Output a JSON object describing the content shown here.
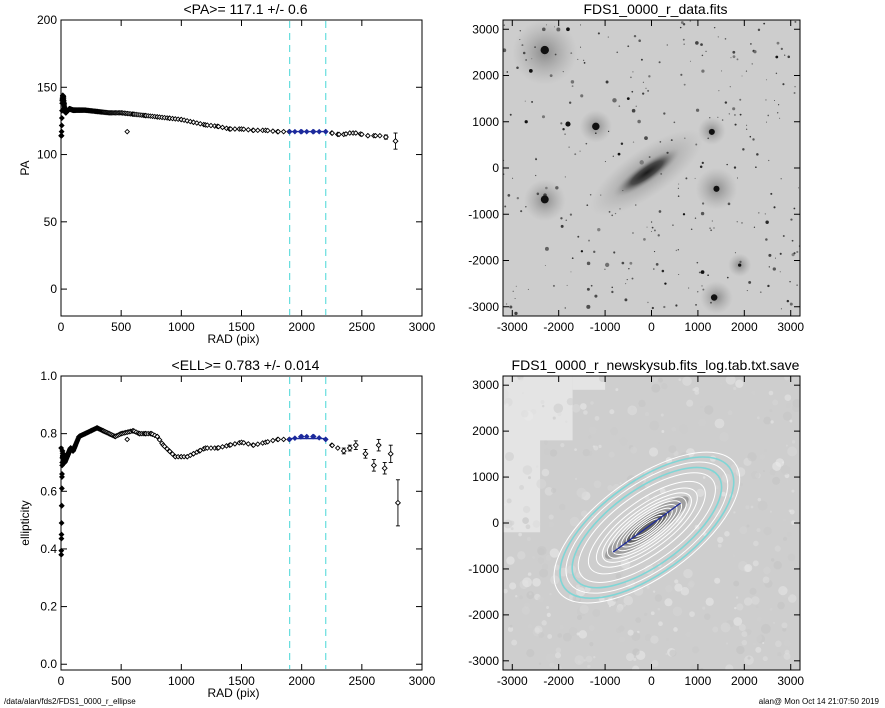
{
  "footer": {
    "path": "/data/alan/fds2/FDS1_0000_r_ellipse",
    "user_time": "alan@  Mon Oct 14 21:07:50 2019"
  },
  "chart_data": [
    {
      "type": "scatter",
      "title": "<PA>= 117.1 +/-   0.6",
      "xlabel": "RAD (pix)",
      "ylabel": "PA",
      "xlim": [
        0,
        3000
      ],
      "ylim": [
        -20,
        200
      ],
      "xticks": [
        0,
        500,
        1000,
        1500,
        2000,
        2500,
        3000
      ],
      "yticks": [
        0,
        50,
        100,
        150,
        200
      ],
      "grid": false,
      "vlines": [
        1900,
        2200
      ],
      "vline_color": "#66dddd",
      "point_color": "#000000",
      "highlight_color": "#1c2a9c",
      "fit": {
        "x0": 1900,
        "x1": 2200,
        "value": 117.1
      },
      "outliers": [
        {
          "x": 550,
          "y": 117
        }
      ],
      "profile": [
        [
          5,
          117
        ],
        [
          10,
          140
        ],
        [
          15,
          144
        ],
        [
          20,
          143
        ],
        [
          25,
          138
        ],
        [
          30,
          134
        ],
        [
          40,
          131
        ],
        [
          50,
          132
        ],
        [
          70,
          134
        ],
        [
          100,
          133
        ],
        [
          150,
          133
        ],
        [
          200,
          133
        ],
        [
          300,
          132
        ],
        [
          400,
          131
        ],
        [
          500,
          131
        ],
        [
          600,
          130
        ],
        [
          700,
          129
        ],
        [
          800,
          128
        ],
        [
          900,
          127
        ],
        [
          1000,
          126
        ],
        [
          1100,
          124
        ],
        [
          1200,
          122
        ],
        [
          1300,
          121
        ],
        [
          1400,
          119
        ],
        [
          1500,
          119
        ],
        [
          1600,
          118
        ],
        [
          1700,
          118
        ],
        [
          1800,
          117
        ],
        [
          1900,
          117
        ],
        [
          2000,
          117
        ],
        [
          2100,
          117
        ],
        [
          2200,
          117
        ],
        [
          2250,
          116
        ],
        [
          2300,
          115
        ],
        [
          2350,
          115
        ],
        [
          2400,
          116
        ],
        [
          2450,
          116
        ],
        [
          2500,
          115
        ],
        [
          2550,
          114
        ],
        [
          2600,
          114
        ],
        [
          2650,
          114
        ]
      ],
      "errorbar_points": [
        {
          "x": 2700,
          "y": 113,
          "err": 1.5
        },
        {
          "x": 2780,
          "y": 110,
          "err": 6
        }
      ]
    },
    {
      "type": "scatter",
      "title": "<ELL>= 0.783 +/-  0.014",
      "xlabel": "RAD (pix)",
      "ylabel": "ellipticity",
      "xlim": [
        0,
        3000
      ],
      "ylim": [
        -0.02,
        1.0
      ],
      "xticks": [
        0,
        500,
        1000,
        1500,
        2000,
        2500,
        3000
      ],
      "yticks": [
        0.0,
        0.2,
        0.4,
        0.6,
        0.8,
        1.0
      ],
      "ytick_labels": [
        "0.0",
        "0.2",
        "0.4",
        "0.6",
        "0.8",
        "1.0"
      ],
      "grid": false,
      "vlines": [
        1900,
        2200
      ],
      "vline_color": "#66dddd",
      "point_color": "#000000",
      "highlight_color": "#1c2a9c",
      "fit": {
        "x0": 1900,
        "x1": 2200,
        "value": 0.783
      },
      "outliers": [
        {
          "x": 550,
          "y": 0.78
        }
      ],
      "profile": [
        [
          2,
          0.38
        ],
        [
          4,
          0.45
        ],
        [
          6,
          0.55
        ],
        [
          8,
          0.65
        ],
        [
          10,
          0.7
        ],
        [
          12,
          0.74
        ],
        [
          15,
          0.72
        ],
        [
          20,
          0.73
        ],
        [
          30,
          0.7
        ],
        [
          50,
          0.72
        ],
        [
          80,
          0.75
        ],
        [
          100,
          0.74
        ],
        [
          150,
          0.79
        ],
        [
          200,
          0.8
        ],
        [
          250,
          0.81
        ],
        [
          300,
          0.82
        ],
        [
          350,
          0.81
        ],
        [
          400,
          0.8
        ],
        [
          450,
          0.79
        ],
        [
          500,
          0.8
        ],
        [
          600,
          0.81
        ],
        [
          650,
          0.8
        ],
        [
          700,
          0.8
        ],
        [
          750,
          0.8
        ],
        [
          800,
          0.79
        ],
        [
          850,
          0.76
        ],
        [
          900,
          0.74
        ],
        [
          950,
          0.72
        ],
        [
          1000,
          0.72
        ],
        [
          1050,
          0.72
        ],
        [
          1100,
          0.73
        ],
        [
          1150,
          0.74
        ],
        [
          1200,
          0.75
        ],
        [
          1300,
          0.75
        ],
        [
          1400,
          0.76
        ],
        [
          1500,
          0.77
        ],
        [
          1600,
          0.76
        ],
        [
          1700,
          0.77
        ],
        [
          1800,
          0.78
        ],
        [
          1900,
          0.78
        ],
        [
          2000,
          0.79
        ],
        [
          2100,
          0.79
        ],
        [
          2200,
          0.78
        ],
        [
          2250,
          0.76
        ],
        [
          2300,
          0.75
        ]
      ],
      "errorbar_points": [
        {
          "x": 2350,
          "y": 0.74,
          "err": 0.01
        },
        {
          "x": 2400,
          "y": 0.75,
          "err": 0.01
        },
        {
          "x": 2450,
          "y": 0.76,
          "err": 0.015
        },
        {
          "x": 2530,
          "y": 0.73,
          "err": 0.015
        },
        {
          "x": 2600,
          "y": 0.69,
          "err": 0.02
        },
        {
          "x": 2640,
          "y": 0.76,
          "err": 0.02
        },
        {
          "x": 2690,
          "y": 0.68,
          "err": 0.02
        },
        {
          "x": 2740,
          "y": 0.73,
          "err": 0.03
        },
        {
          "x": 2800,
          "y": 0.56,
          "err": 0.08
        }
      ]
    },
    {
      "type": "heatmap",
      "title": "FDS1_0000_r_data.fits",
      "xlim": [
        -3200,
        3200
      ],
      "ylim": [
        -3200,
        3200
      ],
      "xticks": [
        -3000,
        -2000,
        -1000,
        0,
        1000,
        2000,
        3000
      ],
      "yticks": [
        -3000,
        -2000,
        -1000,
        0,
        1000,
        2000,
        3000
      ],
      "colormap": "inverted grayscale",
      "galaxy": {
        "x": -100,
        "y": -100,
        "pa": 35,
        "a": 900,
        "b": 230
      },
      "halos": [
        {
          "x": -2300,
          "y": 2500,
          "r": 700
        },
        {
          "x": -2300,
          "y": -700,
          "r": 450
        },
        {
          "x": 1400,
          "y": -450,
          "r": 450
        },
        {
          "x": 1400,
          "y": -2800,
          "r": 350
        },
        {
          "x": -1200,
          "y": 900,
          "r": 350
        },
        {
          "x": 1300,
          "y": 800,
          "r": 300
        },
        {
          "x": 1900,
          "y": -2100,
          "r": 250
        }
      ],
      "bright_stars": [
        {
          "x": -2300,
          "y": 2550,
          "r": 90
        },
        {
          "x": -2600,
          "y": 2100,
          "r": 40
        },
        {
          "x": -1800,
          "y": 3000,
          "r": 40
        },
        {
          "x": -1200,
          "y": 900,
          "r": 80
        },
        {
          "x": -1800,
          "y": 950,
          "r": 55
        },
        {
          "x": -2300,
          "y": -680,
          "r": 85
        },
        {
          "x": -2700,
          "y": 1000,
          "r": 35
        },
        {
          "x": 1300,
          "y": 780,
          "r": 65
        },
        {
          "x": 1400,
          "y": -450,
          "r": 65
        },
        {
          "x": 1350,
          "y": -2800,
          "r": 70
        },
        {
          "x": 1100,
          "y": -2250,
          "r": 40
        },
        {
          "x": 1900,
          "y": -2100,
          "r": 35
        },
        {
          "x": -700,
          "y": 300,
          "r": 30
        },
        {
          "x": -500,
          "y": 1500,
          "r": 30
        },
        {
          "x": 700,
          "y": -1000,
          "r": 25
        },
        {
          "x": 2700,
          "y": 2400,
          "r": 30
        },
        {
          "x": -1500,
          "y": -1800,
          "r": 25
        },
        {
          "x": 300,
          "y": -2500,
          "r": 25
        }
      ],
      "background_star_count": 300
    },
    {
      "type": "heatmap",
      "title": "FDS1_0000_r_newskysub.fits_log.tab.txt.save",
      "xlim": [
        -3200,
        3200
      ],
      "ylim": [
        -3200,
        3200
      ],
      "xticks": [
        -3000,
        -2000,
        -1000,
        0,
        1000,
        2000,
        3000
      ],
      "yticks": [
        -3000,
        -2000,
        -1000,
        0,
        1000,
        2000,
        3000
      ],
      "colormap": "grayscale",
      "mask_color": "#e4e4e4",
      "image_color": "#cecece",
      "fitted_ellipses": {
        "x": -100,
        "y": -100,
        "pa": 36,
        "axis_ratio": 0.217,
        "semi_major": [
          300,
          420,
          540,
          660,
          780,
          900,
          1020,
          1150,
          1300,
          1500,
          1750,
          2050,
          2350
        ],
        "color": "#ffffff",
        "highlight_semi_major": [
          1900,
          2200
        ],
        "highlight_color": "#7fd6d6"
      },
      "major_axis": {
        "length": 900,
        "color": "#1c2a9c"
      }
    }
  ]
}
